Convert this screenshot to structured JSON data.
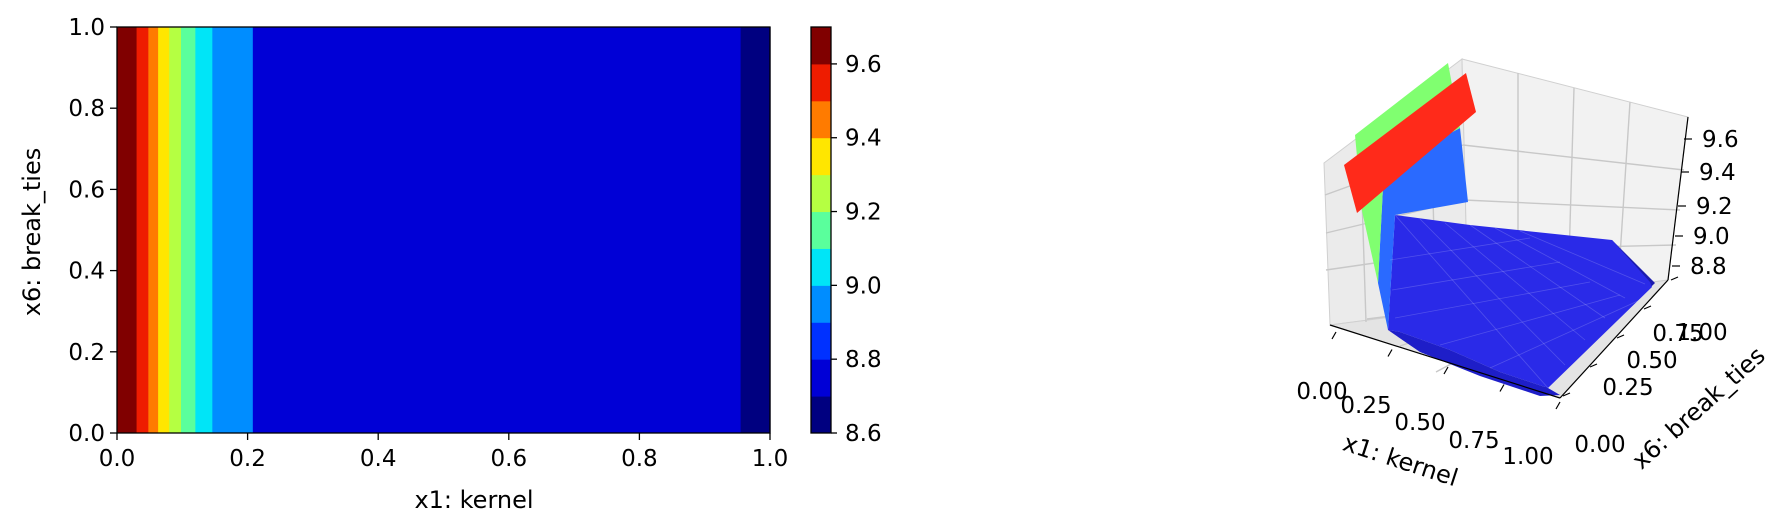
{
  "chart_data": [
    {
      "type": "heatmap",
      "subtype": "filled-contour",
      "xlabel": "x1: kernel",
      "ylabel": "x6: break_ties",
      "xlim": [
        0.0,
        1.0
      ],
      "ylim": [
        0.0,
        1.0
      ],
      "xticks": [
        "0.0",
        "0.2",
        "0.4",
        "0.6",
        "0.8",
        "1.0"
      ],
      "yticks": [
        "0.0",
        "0.2",
        "0.4",
        "0.6",
        "0.8",
        "1.0"
      ],
      "colormap": "jet",
      "bands": [
        {
          "x0": 0.0,
          "x1": 0.03,
          "level": 9.65,
          "color": "#800000"
        },
        {
          "x0": 0.03,
          "x1": 0.048,
          "level": 9.55,
          "color": "#ee1c00"
        },
        {
          "x0": 0.048,
          "x1": 0.063,
          "level": 9.45,
          "color": "#ff7b00"
        },
        {
          "x0": 0.063,
          "x1": 0.08,
          "level": 9.35,
          "color": "#ffe600"
        },
        {
          "x0": 0.08,
          "x1": 0.098,
          "level": 9.25,
          "color": "#b5ff42"
        },
        {
          "x0": 0.098,
          "x1": 0.12,
          "level": 9.15,
          "color": "#5aff9c"
        },
        {
          "x0": 0.12,
          "x1": 0.146,
          "level": 9.05,
          "color": "#00e5f7"
        },
        {
          "x0": 0.146,
          "x1": 0.208,
          "level": 8.95,
          "color": "#008dff"
        },
        {
          "x0": 0.208,
          "x1": 0.955,
          "level": 8.75,
          "color": "#0000d6"
        },
        {
          "x0": 0.955,
          "x1": 1.0,
          "level": 8.65,
          "color": "#000080"
        }
      ],
      "colorbar": {
        "levels": [
          8.6,
          8.7,
          8.8,
          8.9,
          9.0,
          9.1,
          9.2,
          9.3,
          9.4,
          9.5,
          9.6,
          9.7
        ],
        "colors": [
          "#000080",
          "#0000d6",
          "#0031ff",
          "#008dff",
          "#00e5f7",
          "#5aff9c",
          "#b5ff42",
          "#ffe600",
          "#ff7b00",
          "#ee1c00",
          "#800000"
        ],
        "ticks": [
          "8.6",
          "8.8",
          "9.0",
          "9.2",
          "9.4",
          "9.6"
        ]
      }
    },
    {
      "type": "surface3d",
      "xlabel": "x1: kernel",
      "ylabel": "x6: break_ties",
      "xticks": [
        "0.00",
        "0.25",
        "0.50",
        "0.75",
        "1.00"
      ],
      "yticks": [
        "0.00",
        "0.25",
        "0.50",
        "0.75",
        "1.00"
      ],
      "zticks": [
        "8.8",
        "9.0",
        "9.2",
        "9.4",
        "9.6"
      ],
      "zlim": [
        8.7,
        9.7
      ],
      "face_colors": {
        "high": "#ff2a1a",
        "mid": "#7dff6e",
        "low_mid": "#1f6bff",
        "low": "#2a2aff",
        "dark": "#1a1a9e"
      }
    }
  ]
}
